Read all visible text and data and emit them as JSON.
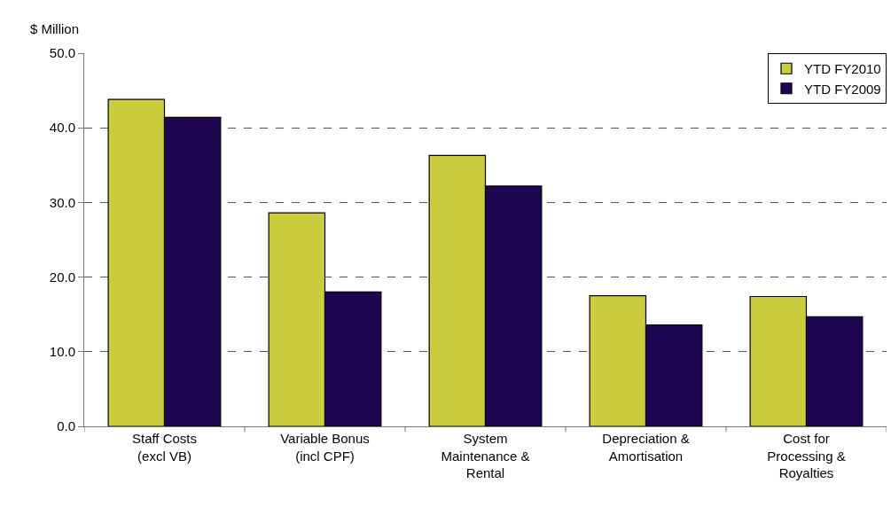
{
  "chart_data": {
    "type": "bar",
    "ylabel": "$ Million",
    "categories": [
      "Staff Costs (excl VB)",
      "Variable Bonus (incl CPF)",
      "System Maintenance & Rental",
      "Depreciation & Amortisation",
      "Cost for Processing & Royalties"
    ],
    "series": [
      {
        "name": "YTD FY2010",
        "color": "#cccc3f",
        "values": [
          43.8,
          28.6,
          36.3,
          17.5,
          17.4
        ]
      },
      {
        "name": "YTD FY2009",
        "color": "#1e0550",
        "values": [
          41.4,
          18.0,
          32.2,
          13.6,
          14.7
        ]
      }
    ],
    "ylim": [
      0,
      50
    ],
    "yticks": [
      {
        "value": 0,
        "label": "0.0"
      },
      {
        "value": 10,
        "label": "10.0"
      },
      {
        "value": 20,
        "label": "20.0"
      },
      {
        "value": 30,
        "label": "30.0"
      },
      {
        "value": 40,
        "label": "40.0"
      },
      {
        "value": 50,
        "label": "50.0"
      }
    ],
    "grid": "y",
    "legend": "top right"
  }
}
